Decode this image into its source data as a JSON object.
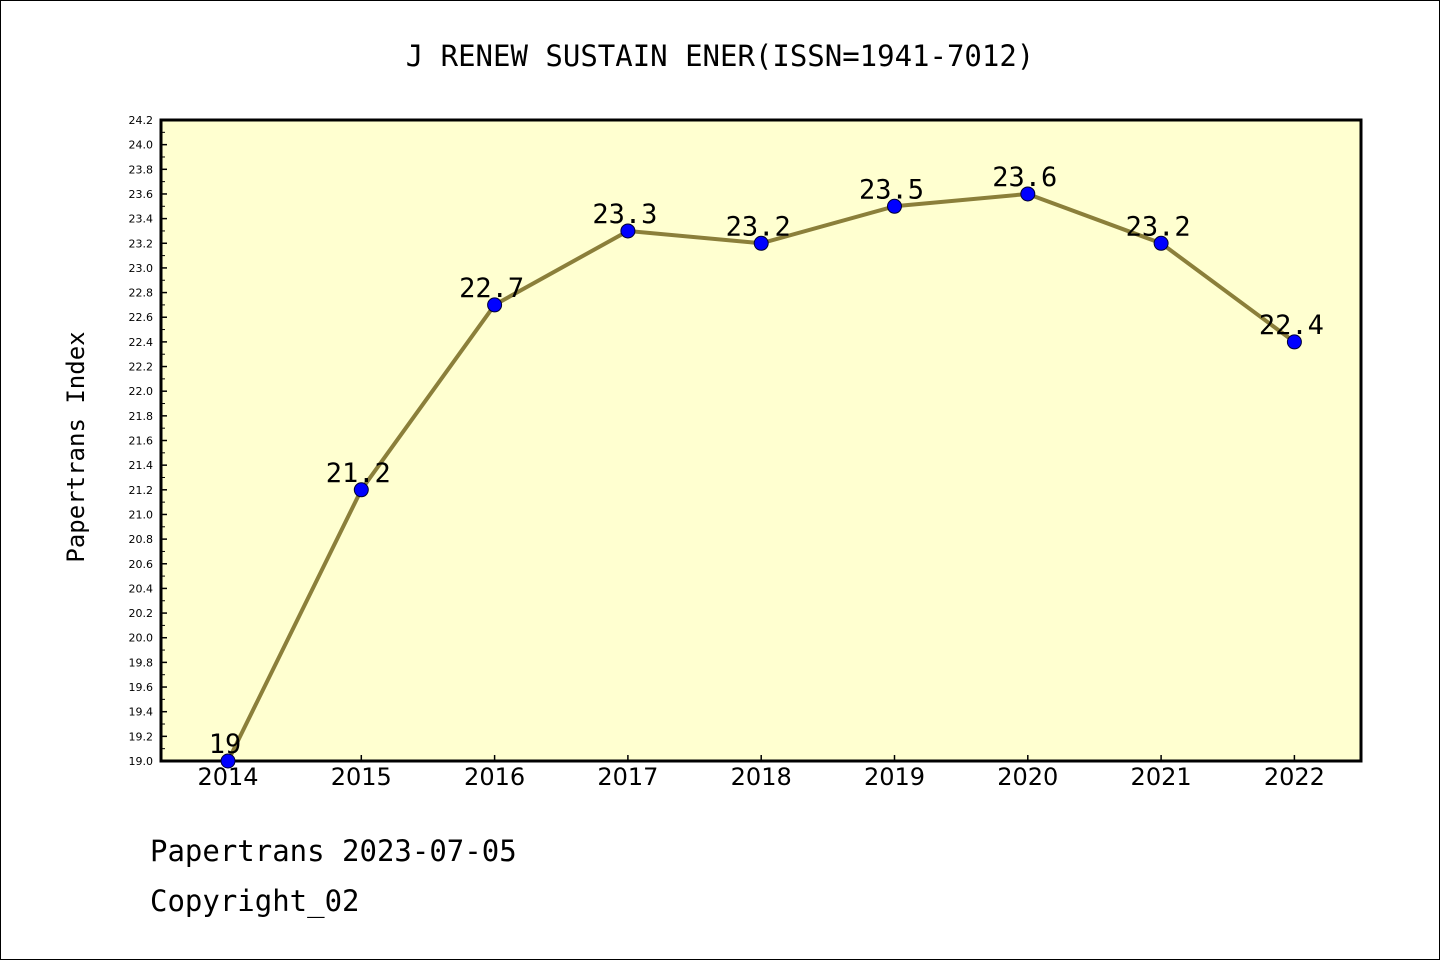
{
  "chart_data": {
    "type": "line",
    "title": "J RENEW SUSTAIN ENER(ISSN=1941-7012)",
    "xlabel": "",
    "ylabel": "Papertrans Index",
    "categories": [
      "2014",
      "2015",
      "2016",
      "2017",
      "2018",
      "2019",
      "2020",
      "2021",
      "2022"
    ],
    "values": [
      19.0,
      21.2,
      22.7,
      23.3,
      23.2,
      23.5,
      23.6,
      23.2,
      22.4
    ],
    "data_labels": [
      "19",
      "21.2",
      "22.7",
      "23.3",
      "23.2",
      "23.5",
      "23.6",
      "23.2",
      "22.4"
    ],
    "ylim": [
      19.0,
      24.2
    ],
    "y_ticks": [
      "19.0",
      "19.2",
      "19.4",
      "19.6",
      "19.8",
      "20.0",
      "20.2",
      "20.4",
      "20.6",
      "20.8",
      "21.0",
      "21.2",
      "21.4",
      "21.6",
      "21.8",
      "22.0",
      "22.2",
      "22.4",
      "22.6",
      "22.8",
      "23.0",
      "23.2",
      "23.4",
      "23.6",
      "23.8",
      "24.0",
      "24.2"
    ],
    "grid": false,
    "colors": {
      "plot_background": "#ffffd0",
      "line": "#8b7f3a",
      "marker": "#0000ff"
    }
  },
  "footer": {
    "date_line": "Papertrans 2023-07-05",
    "copyright": "Copyright_02"
  }
}
